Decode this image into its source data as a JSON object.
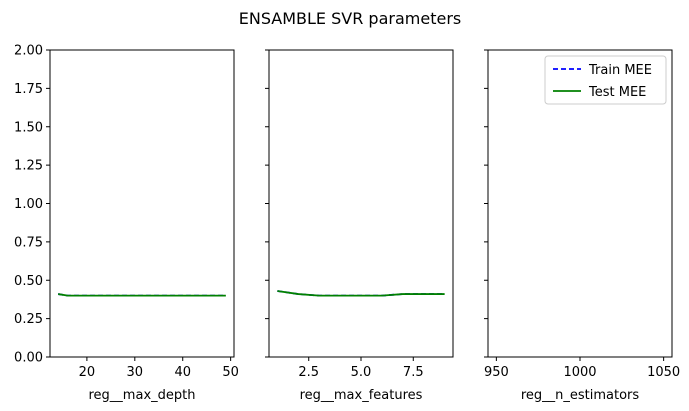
{
  "figure": {
    "title": "ENSAMBLE SVR parameters",
    "colors": {
      "train": "#0000ff",
      "test": "#008000",
      "frame": "#000000",
      "legend_border": "#cccccc",
      "background": "#ffffff"
    }
  },
  "chart_data": [
    {
      "type": "line",
      "xlabel": "reg__max_depth",
      "ylabel": "",
      "xlim": [
        12.3,
        50.7
      ],
      "ylim": [
        0,
        2
      ],
      "xticks": [
        20,
        30,
        40,
        50
      ],
      "xtick_labels": [
        "20",
        "30",
        "40",
        "50"
      ],
      "yticks": [
        0,
        0.25,
        0.5,
        0.75,
        1.0,
        1.25,
        1.5,
        1.75,
        2.0
      ],
      "ytick_labels": [
        "0.00",
        "0.25",
        "0.50",
        "0.75",
        "1.00",
        "1.25",
        "1.50",
        "1.75",
        "2.00"
      ],
      "grid": false,
      "x": [
        14,
        16,
        18,
        20,
        22,
        24,
        26,
        28,
        30,
        32,
        34,
        36,
        38,
        40,
        42,
        44,
        46,
        48,
        49
      ],
      "series": [
        {
          "name": "Train MEE",
          "style": "dashed",
          "color": "#0000ff",
          "values": [
            0.41,
            0.4,
            0.4,
            0.4,
            0.4,
            0.4,
            0.4,
            0.4,
            0.4,
            0.4,
            0.4,
            0.4,
            0.4,
            0.4,
            0.4,
            0.4,
            0.4,
            0.4,
            0.4
          ]
        },
        {
          "name": "Test MEE",
          "style": "solid",
          "color": "#008000",
          "values": [
            0.41,
            0.4,
            0.4,
            0.4,
            0.4,
            0.4,
            0.4,
            0.4,
            0.4,
            0.4,
            0.4,
            0.4,
            0.4,
            0.4,
            0.4,
            0.4,
            0.4,
            0.4,
            0.4
          ]
        }
      ]
    },
    {
      "type": "line",
      "xlabel": "reg__max_features",
      "ylabel": "",
      "xlim": [
        0.6,
        9.4
      ],
      "ylim": [
        0,
        2
      ],
      "xticks": [
        2.5,
        5.0,
        7.5
      ],
      "xtick_labels": [
        "2.5",
        "5.0",
        "7.5"
      ],
      "yticks": [
        0,
        0.25,
        0.5,
        0.75,
        1.0,
        1.25,
        1.5,
        1.75,
        2.0
      ],
      "ytick_labels": [
        "",
        "",
        "",
        "",
        "",
        "",
        "",
        "",
        ""
      ],
      "grid": false,
      "x": [
        1,
        2,
        3,
        4,
        5,
        6,
        7,
        8,
        9
      ],
      "series": [
        {
          "name": "Train MEE",
          "style": "dashed",
          "color": "#0000ff",
          "values": [
            0.43,
            0.41,
            0.4,
            0.4,
            0.4,
            0.4,
            0.41,
            0.41,
            0.41
          ]
        },
        {
          "name": "Test MEE",
          "style": "solid",
          "color": "#008000",
          "values": [
            0.43,
            0.41,
            0.4,
            0.4,
            0.4,
            0.4,
            0.41,
            0.41,
            0.41
          ]
        }
      ]
    },
    {
      "type": "line",
      "xlabel": "reg__n_estimators",
      "ylabel": "",
      "xlim": [
        945,
        1055
      ],
      "ylim": [
        0,
        2
      ],
      "xticks": [
        950,
        1000,
        1050
      ],
      "xtick_labels": [
        "950",
        "1000",
        "1050"
      ],
      "yticks": [
        0,
        0.25,
        0.5,
        0.75,
        1.0,
        1.25,
        1.5,
        1.75,
        2.0
      ],
      "ytick_labels": [
        "",
        "",
        "",
        "",
        "",
        "",
        "",
        "",
        ""
      ],
      "grid": false,
      "legend": {
        "position": "top-right",
        "entries": [
          "Train MEE",
          "Test MEE"
        ]
      },
      "x": [],
      "series": [
        {
          "name": "Train MEE",
          "style": "dashed",
          "color": "#0000ff",
          "values": []
        },
        {
          "name": "Test MEE",
          "style": "solid",
          "color": "#008000",
          "values": []
        }
      ]
    }
  ]
}
